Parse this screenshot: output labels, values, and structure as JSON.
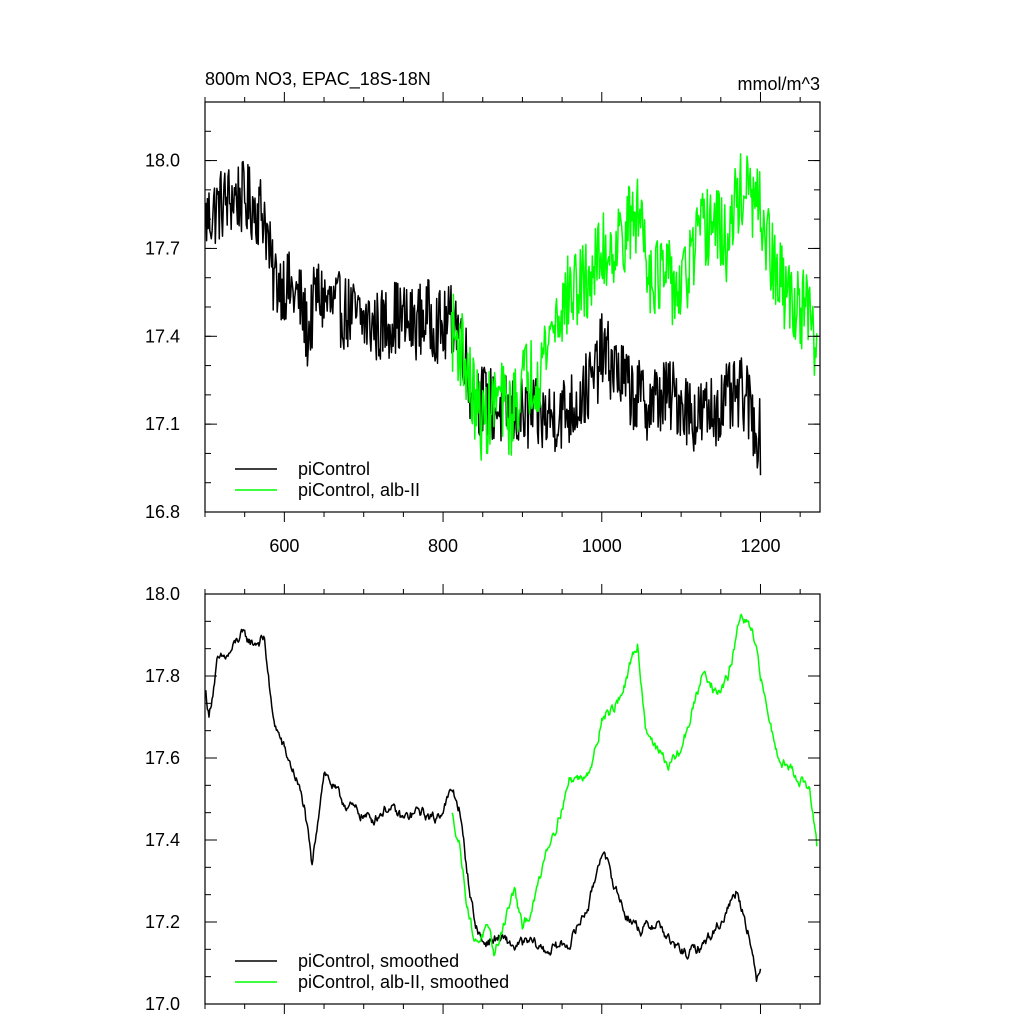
{
  "chart_data": [
    {
      "type": "line",
      "title": "800m NO3, EPAC_18S-18N",
      "units": "mmol/m^3",
      "xlim": [
        500,
        1275
      ],
      "ylim": [
        16.8,
        18.2
      ],
      "xticks": [
        600,
        800,
        1000,
        1200
      ],
      "xtick_labels": [
        "600",
        "800",
        "1000",
        "1200"
      ],
      "yticks": [
        16.8,
        17.1,
        17.4,
        17.7,
        18.0
      ],
      "ytick_labels": [
        "16.8",
        "17.1",
        "17.4",
        "17.7",
        "18.0"
      ],
      "legend_position": "bottom-left",
      "grid": false,
      "series": [
        {
          "name": "piControl",
          "color": "#000000",
          "x_range": [
            501,
            1200
          ],
          "noise": 0.13,
          "anchors": [
            [
              501,
              17.8
            ],
            [
              520,
              17.85
            ],
            [
              540,
              17.88
            ],
            [
              560,
              17.85
            ],
            [
              575,
              17.82
            ],
            [
              585,
              17.6
            ],
            [
              600,
              17.58
            ],
            [
              620,
              17.52
            ],
            [
              630,
              17.4
            ],
            [
              640,
              17.55
            ],
            [
              660,
              17.5
            ],
            [
              680,
              17.48
            ],
            [
              700,
              17.45
            ],
            [
              720,
              17.43
            ],
            [
              740,
              17.47
            ],
            [
              760,
              17.44
            ],
            [
              780,
              17.47
            ],
            [
              800,
              17.42
            ],
            [
              815,
              17.47
            ],
            [
              825,
              17.38
            ],
            [
              835,
              17.22
            ],
            [
              850,
              17.18
            ],
            [
              870,
              17.15
            ],
            [
              900,
              17.13
            ],
            [
              930,
              17.12
            ],
            [
              960,
              17.15
            ],
            [
              990,
              17.25
            ],
            [
              1000,
              17.35
            ],
            [
              1020,
              17.28
            ],
            [
              1040,
              17.2
            ],
            [
              1060,
              17.17
            ],
            [
              1080,
              17.2
            ],
            [
              1100,
              17.18
            ],
            [
              1120,
              17.12
            ],
            [
              1140,
              17.15
            ],
            [
              1160,
              17.18
            ],
            [
              1180,
              17.2
            ],
            [
              1200,
              17.05
            ]
          ]
        },
        {
          "name": "piControl, alb-II",
          "color": "#00ff00",
          "x_range": [
            811,
            1271
          ],
          "noise": 0.14,
          "anchors": [
            [
              811,
              17.42
            ],
            [
              825,
              17.35
            ],
            [
              835,
              17.22
            ],
            [
              850,
              17.1
            ],
            [
              870,
              17.2
            ],
            [
              885,
              17.12
            ],
            [
              900,
              17.25
            ],
            [
              920,
              17.28
            ],
            [
              940,
              17.45
            ],
            [
              960,
              17.55
            ],
            [
              980,
              17.58
            ],
            [
              1000,
              17.68
            ],
            [
              1020,
              17.72
            ],
            [
              1040,
              17.8
            ],
            [
              1050,
              17.82
            ],
            [
              1060,
              17.62
            ],
            [
              1080,
              17.6
            ],
            [
              1100,
              17.55
            ],
            [
              1120,
              17.72
            ],
            [
              1140,
              17.8
            ],
            [
              1160,
              17.7
            ],
            [
              1170,
              17.88
            ],
            [
              1180,
              17.9
            ],
            [
              1200,
              17.82
            ],
            [
              1220,
              17.6
            ],
            [
              1240,
              17.52
            ],
            [
              1260,
              17.48
            ],
            [
              1271,
              17.32
            ]
          ]
        }
      ]
    },
    {
      "type": "line",
      "xlim": [
        500,
        1275
      ],
      "ylim": [
        17.0,
        18.0
      ],
      "xticks": [
        600,
        800,
        1000,
        1200
      ],
      "yticks": [
        17.0,
        17.2,
        17.4,
        17.6,
        17.8,
        18.0
      ],
      "ytick_labels": [
        "17.0",
        "17.2",
        "17.4",
        "17.6",
        "17.8",
        "18.0"
      ],
      "legend_position": "bottom-left",
      "grid": false,
      "series": [
        {
          "name": "piControl, smoothed",
          "color": "#000000",
          "x_range": [
            501,
            1200
          ],
          "noise": 0.035,
          "anchors": [
            [
              501,
              17.76
            ],
            [
              505,
              17.7
            ],
            [
              515,
              17.83
            ],
            [
              530,
              17.85
            ],
            [
              545,
              17.9
            ],
            [
              560,
              17.88
            ],
            [
              575,
              17.89
            ],
            [
              585,
              17.7
            ],
            [
              600,
              17.62
            ],
            [
              615,
              17.55
            ],
            [
              625,
              17.48
            ],
            [
              635,
              17.33
            ],
            [
              645,
              17.5
            ],
            [
              650,
              17.57
            ],
            [
              670,
              17.5
            ],
            [
              690,
              17.47
            ],
            [
              710,
              17.45
            ],
            [
              730,
              17.48
            ],
            [
              750,
              17.45
            ],
            [
              770,
              17.47
            ],
            [
              790,
              17.45
            ],
            [
              800,
              17.48
            ],
            [
              812,
              17.52
            ],
            [
              820,
              17.48
            ],
            [
              832,
              17.3
            ],
            [
              840,
              17.2
            ],
            [
              850,
              17.15
            ],
            [
              870,
              17.16
            ],
            [
              890,
              17.14
            ],
            [
              910,
              17.15
            ],
            [
              930,
              17.13
            ],
            [
              960,
              17.15
            ],
            [
              985,
              17.25
            ],
            [
              1000,
              17.38
            ],
            [
              1010,
              17.32
            ],
            [
              1030,
              17.22
            ],
            [
              1050,
              17.18
            ],
            [
              1070,
              17.2
            ],
            [
              1090,
              17.14
            ],
            [
              1110,
              17.12
            ],
            [
              1130,
              17.15
            ],
            [
              1150,
              17.2
            ],
            [
              1170,
              17.28
            ],
            [
              1185,
              17.18
            ],
            [
              1195,
              17.05
            ],
            [
              1200,
              17.1
            ]
          ]
        },
        {
          "name": "piControl, alb-II, smoothed",
          "color": "#00ff00",
          "x_range": [
            811,
            1271
          ],
          "noise": 0.035,
          "anchors": [
            [
              811,
              17.46
            ],
            [
              820,
              17.4
            ],
            [
              830,
              17.25
            ],
            [
              840,
              17.15
            ],
            [
              855,
              17.18
            ],
            [
              865,
              17.12
            ],
            [
              880,
              17.22
            ],
            [
              890,
              17.28
            ],
            [
              900,
              17.18
            ],
            [
              915,
              17.25
            ],
            [
              930,
              17.38
            ],
            [
              945,
              17.45
            ],
            [
              960,
              17.55
            ],
            [
              975,
              17.55
            ],
            [
              990,
              17.6
            ],
            [
              1000,
              17.7
            ],
            [
              1015,
              17.72
            ],
            [
              1030,
              17.78
            ],
            [
              1045,
              17.88
            ],
            [
              1055,
              17.68
            ],
            [
              1070,
              17.62
            ],
            [
              1085,
              17.58
            ],
            [
              1100,
              17.62
            ],
            [
              1115,
              17.72
            ],
            [
              1130,
              17.82
            ],
            [
              1145,
              17.75
            ],
            [
              1160,
              17.8
            ],
            [
              1175,
              17.95
            ],
            [
              1190,
              17.9
            ],
            [
              1205,
              17.75
            ],
            [
              1220,
              17.62
            ],
            [
              1235,
              17.58
            ],
            [
              1250,
              17.55
            ],
            [
              1262,
              17.52
            ],
            [
              1271,
              17.38
            ]
          ]
        }
      ]
    }
  ]
}
